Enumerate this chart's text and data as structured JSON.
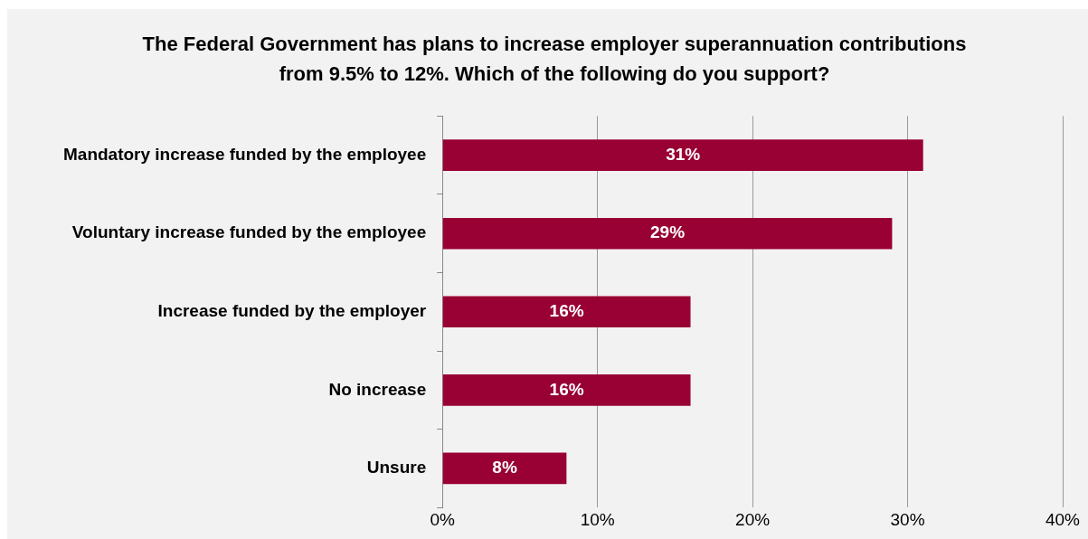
{
  "chart_data": {
    "type": "bar",
    "orientation": "horizontal",
    "title": "The Federal Government has plans to increase employer superannuation contributions from 9.5% to 12%. Which of the following do you support?",
    "categories": [
      "Mandatory increase funded by the employee",
      "Voluntary increase funded by the employee",
      "Increase funded by the employer",
      "No increase",
      "Unsure"
    ],
    "values": [
      31,
      29,
      16,
      16,
      8
    ],
    "value_labels": [
      "31%",
      "29%",
      "16%",
      "16%",
      "8%"
    ],
    "color": "#990033",
    "xlim": [
      0,
      40
    ],
    "xticks": [
      {
        "value": 0,
        "label": "0%"
      },
      {
        "value": 10,
        "label": "10%"
      },
      {
        "value": 20,
        "label": "20%"
      },
      {
        "value": 30,
        "label": "30%"
      },
      {
        "value": 40,
        "label": "40%"
      }
    ],
    "grid": "x"
  }
}
